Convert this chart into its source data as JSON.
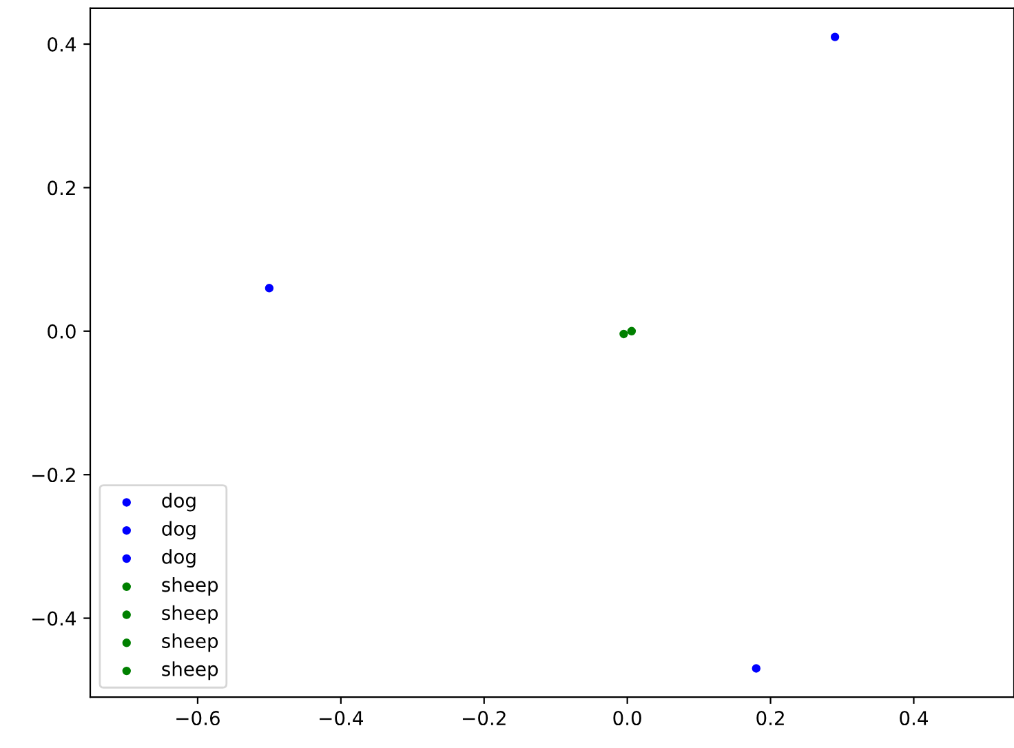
{
  "chart_data": {
    "type": "scatter",
    "xlim": [
      -0.75,
      0.54
    ],
    "ylim": [
      -0.51,
      0.45
    ],
    "xticks": [
      {
        "value": -0.6,
        "label": "−0.6"
      },
      {
        "value": -0.4,
        "label": "−0.4"
      },
      {
        "value": -0.2,
        "label": "−0.2"
      },
      {
        "value": 0,
        "label": "0.0"
      },
      0.2,
      0.4
    ],
    "yticks": [
      {
        "value": -0.4,
        "label": "−0.4"
      },
      {
        "value": -0.2,
        "label": "−0.2"
      },
      {
        "value": 0,
        "label": "0.0"
      },
      0.2,
      0.4
    ],
    "legend": "bottom left",
    "grid": false,
    "marker": "circle",
    "series": [
      {
        "name": "dog",
        "color": "#0000ff",
        "x": [
          0.29
        ],
        "values": [
          0.41
        ]
      },
      {
        "name": "dog",
        "color": "#0000ff",
        "x": [
          -0.5
        ],
        "values": [
          0.06
        ]
      },
      {
        "name": "dog",
        "color": "#0000ff",
        "x": [
          0.18
        ],
        "values": [
          -0.47
        ]
      },
      {
        "name": "sheep",
        "color": "#008000",
        "x": [
          -0.005
        ],
        "values": [
          -0.004
        ]
      },
      {
        "name": "sheep",
        "color": "#008000",
        "x": [
          null
        ],
        "values": [
          null
        ]
      },
      {
        "name": "sheep",
        "color": "#008000",
        "x": [
          null
        ],
        "values": [
          null
        ]
      },
      {
        "name": "sheep",
        "color": "#008000",
        "x": [
          0.006
        ],
        "values": [
          0.0
        ]
      }
    ]
  }
}
